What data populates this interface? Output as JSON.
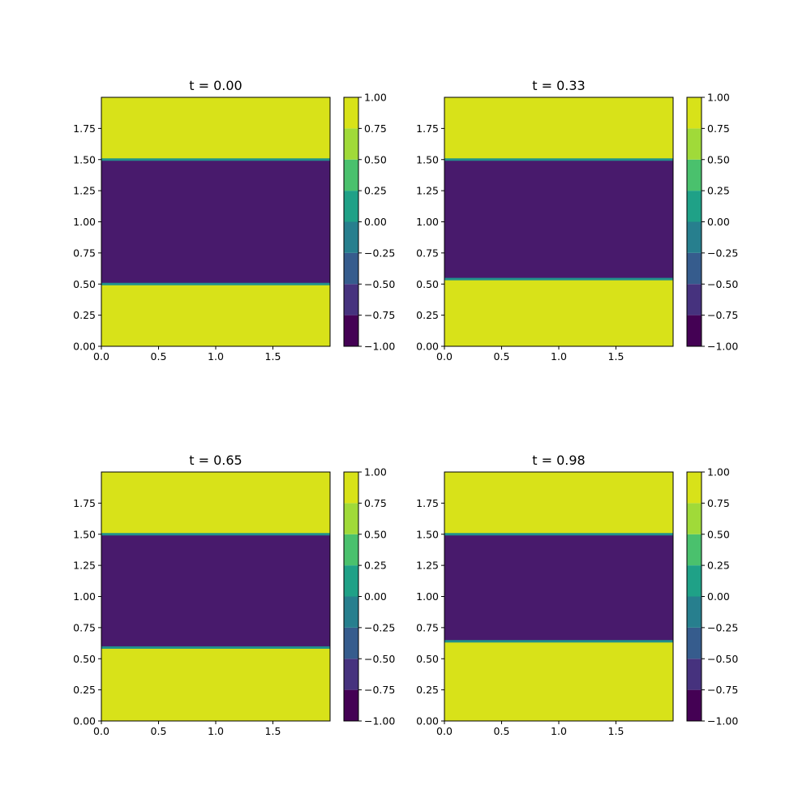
{
  "chart_data": [
    {
      "type": "heatmap",
      "subtype": "filled-contour",
      "title": "t = 0.00",
      "xlim": [
        0,
        2
      ],
      "ylim": [
        0,
        2
      ],
      "x_ticks": [
        "0.0",
        "0.5",
        "1.0",
        "1.5"
      ],
      "y_ticks": [
        "0.00",
        "0.25",
        "0.50",
        "0.75",
        "1.00",
        "1.25",
        "1.50",
        "1.75"
      ],
      "field_regions": [
        {
          "y_from": 0.0,
          "y_to": 0.5,
          "value": 1.0
        },
        {
          "y_from": 0.5,
          "y_to": 1.5,
          "value": -1.0
        },
        {
          "y_from": 1.5,
          "y_to": 2.0,
          "value": 1.0
        }
      ],
      "interfaces_y": [
        0.5,
        1.5
      ],
      "colorbar": {
        "levels": [
          -1.0,
          -0.75,
          -0.5,
          -0.25,
          0.0,
          0.25,
          0.5,
          0.75,
          1.0
        ],
        "tick_labels": [
          "−1.00",
          "−0.75",
          "−0.50",
          "−0.25",
          "0.00",
          "0.25",
          "0.50",
          "0.75",
          "1.00"
        ]
      }
    },
    {
      "type": "heatmap",
      "subtype": "filled-contour",
      "title": "t = 0.33",
      "xlim": [
        0,
        2
      ],
      "ylim": [
        0,
        2
      ],
      "x_ticks": [
        "0.0",
        "0.5",
        "1.0",
        "1.5"
      ],
      "y_ticks": [
        "0.00",
        "0.25",
        "0.50",
        "0.75",
        "1.00",
        "1.25",
        "1.50",
        "1.75"
      ],
      "field_regions": [
        {
          "y_from": 0.0,
          "y_to": 0.54,
          "value": 1.0
        },
        {
          "y_from": 0.54,
          "y_to": 1.5,
          "value": -1.0
        },
        {
          "y_from": 1.5,
          "y_to": 2.0,
          "value": 1.0
        }
      ],
      "interfaces_y": [
        0.54,
        1.5
      ],
      "colorbar": {
        "levels": [
          -1.0,
          -0.75,
          -0.5,
          -0.25,
          0.0,
          0.25,
          0.5,
          0.75,
          1.0
        ],
        "tick_labels": [
          "−1.00",
          "−0.75",
          "−0.50",
          "−0.25",
          "0.00",
          "0.25",
          "0.50",
          "0.75",
          "1.00"
        ]
      }
    },
    {
      "type": "heatmap",
      "subtype": "filled-contour",
      "title": "t = 0.65",
      "xlim": [
        0,
        2
      ],
      "ylim": [
        0,
        2
      ],
      "x_ticks": [
        "0.0",
        "0.5",
        "1.0",
        "1.5"
      ],
      "y_ticks": [
        "0.00",
        "0.25",
        "0.50",
        "0.75",
        "1.00",
        "1.25",
        "1.50",
        "1.75"
      ],
      "field_regions": [
        {
          "y_from": 0.0,
          "y_to": 0.59,
          "value": 1.0
        },
        {
          "y_from": 0.59,
          "y_to": 1.5,
          "value": -1.0
        },
        {
          "y_from": 1.5,
          "y_to": 2.0,
          "value": 1.0
        }
      ],
      "interfaces_y": [
        0.59,
        1.5
      ],
      "colorbar": {
        "levels": [
          -1.0,
          -0.75,
          -0.5,
          -0.25,
          0.0,
          0.25,
          0.5,
          0.75,
          1.0
        ],
        "tick_labels": [
          "−1.00",
          "−0.75",
          "−0.50",
          "−0.25",
          "0.00",
          "0.25",
          "0.50",
          "0.75",
          "1.00"
        ]
      }
    },
    {
      "type": "heatmap",
      "subtype": "filled-contour",
      "title": "t = 0.98",
      "xlim": [
        0,
        2
      ],
      "ylim": [
        0,
        2
      ],
      "x_ticks": [
        "0.0",
        "0.5",
        "1.0",
        "1.5"
      ],
      "y_ticks": [
        "0.00",
        "0.25",
        "0.50",
        "0.75",
        "1.00",
        "1.25",
        "1.50",
        "1.75"
      ],
      "field_regions": [
        {
          "y_from": 0.0,
          "y_to": 0.64,
          "value": 1.0
        },
        {
          "y_from": 0.64,
          "y_to": 1.5,
          "value": -1.0
        },
        {
          "y_from": 1.5,
          "y_to": 2.0,
          "value": 1.0
        }
      ],
      "interfaces_y": [
        0.64,
        1.5
      ],
      "colorbar": {
        "levels": [
          -1.0,
          -0.75,
          -0.5,
          -0.25,
          0.0,
          0.25,
          0.5,
          0.75,
          1.0
        ],
        "tick_labels": [
          "−1.00",
          "−0.75",
          "−0.50",
          "−0.25",
          "0.00",
          "0.25",
          "0.50",
          "0.75",
          "1.00"
        ]
      }
    }
  ],
  "colors": {
    "level_bands": [
      "#440154",
      "#46327e",
      "#365c8d",
      "#277f8e",
      "#1fa187",
      "#4ac16d",
      "#a0da39",
      "#d8e219"
    ],
    "low_fill": "#481a6c",
    "high_fill": "#d8e219",
    "interface_line": "#21918c",
    "axis": "#000000"
  }
}
